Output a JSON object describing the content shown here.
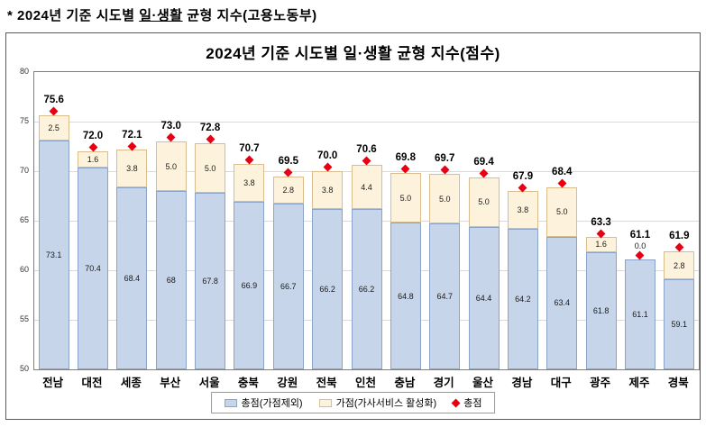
{
  "page_heading": {
    "prefix": "* 2024년 기준 시도별 ",
    "underlined": "일·생활",
    "suffix": " 균형 지수(고용노동부)"
  },
  "chart_data": {
    "type": "bar",
    "stacked": true,
    "title": "2024년 기준 시도별 일·생활 균형 지수(점수)",
    "categories": [
      "전남",
      "대전",
      "세종",
      "부산",
      "서울",
      "충북",
      "강원",
      "전북",
      "인천",
      "충남",
      "경기",
      "울산",
      "경남",
      "대구",
      "광주",
      "제주",
      "경북"
    ],
    "series": [
      {
        "name": "총점(가점제외)",
        "values": [
          73.1,
          70.4,
          68.4,
          68,
          67.8,
          66.9,
          66.7,
          66.2,
          66.2,
          64.8,
          64.7,
          64.4,
          64.2,
          63.4,
          61.8,
          61.1,
          59.1
        ]
      },
      {
        "name": "가점(가사서비스 활성화)",
        "values": [
          2.5,
          1.6,
          3.8,
          5.0,
          5.0,
          3.8,
          2.8,
          3.8,
          4.4,
          5.0,
          5.0,
          5.0,
          3.8,
          5.0,
          1.6,
          0.0,
          2.8
        ]
      }
    ],
    "totals": [
      75.6,
      72.0,
      72.1,
      73.0,
      72.8,
      70.7,
      69.5,
      70.0,
      70.6,
      69.8,
      69.7,
      69.4,
      67.9,
      68.4,
      63.3,
      61.1,
      61.9
    ],
    "base_labels": [
      "73.1",
      "70.4",
      "68.4",
      "68",
      "67.8",
      "66.9",
      "66.7",
      "66.2",
      "66.2",
      "64.8",
      "64.7",
      "64.4",
      "64.2",
      "63.4",
      "61.8",
      "61.1",
      "59.1"
    ],
    "bonus_labels": [
      "2.5",
      "1.6",
      "3.8",
      "5.0",
      "5.0",
      "3.8",
      "2.8",
      "3.8",
      "4.4",
      "5.0",
      "5.0",
      "5.0",
      "3.8",
      "5.0",
      "1.6",
      "0.0",
      "2.8"
    ],
    "total_labels": [
      "75.6",
      "72.0",
      "72.1",
      "73.0",
      "72.8",
      "70.7",
      "69.5",
      "70.0",
      "70.6",
      "69.8",
      "69.7",
      "69.4",
      "67.9",
      "68.4",
      "63.3",
      "61.1",
      "61.9"
    ],
    "marker_label": "총점",
    "ylim": [
      50,
      80
    ],
    "yticks": [
      50,
      55,
      60,
      65,
      70,
      75,
      80
    ],
    "grid": true,
    "legend_position": "bottom",
    "colors": {
      "base_fill": "#c7d5ea",
      "base_border": "#8ba3c7",
      "bonus_fill": "#fdf3dd",
      "bonus_border": "#d9bd8c",
      "marker": "#e60012"
    }
  }
}
